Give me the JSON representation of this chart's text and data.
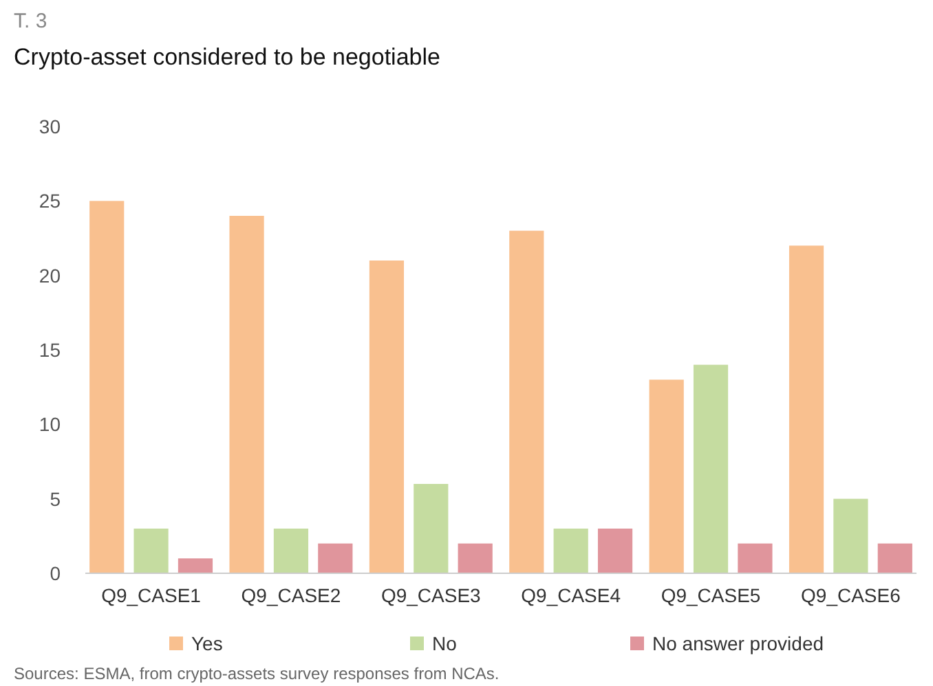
{
  "chart_data": {
    "type": "bar",
    "title": "T. 3",
    "subtitle": "Crypto-asset considered to be negotiable",
    "categories": [
      "Q9_CASE1",
      "Q9_CASE2",
      "Q9_CASE3",
      "Q9_CASE4",
      "Q9_CASE5",
      "Q9_CASE6"
    ],
    "series": [
      {
        "name": "Yes",
        "color": "#f9c08f",
        "values": [
          25,
          24,
          21,
          23,
          13,
          22
        ]
      },
      {
        "name": "No",
        "color": "#c5dca0",
        "values": [
          3,
          3,
          6,
          3,
          14,
          5
        ]
      },
      {
        "name": "No answer provided",
        "color": "#e0959c",
        "values": [
          1,
          2,
          2,
          3,
          2,
          2
        ]
      }
    ],
    "ylim": [
      0,
      30
    ],
    "yticks": [
      0,
      5,
      10,
      15,
      20,
      25,
      30
    ],
    "grid": false,
    "legend": "bottom",
    "annotations": [
      "Sources: ESMA, from crypto-assets survey responses from NCAs."
    ]
  }
}
